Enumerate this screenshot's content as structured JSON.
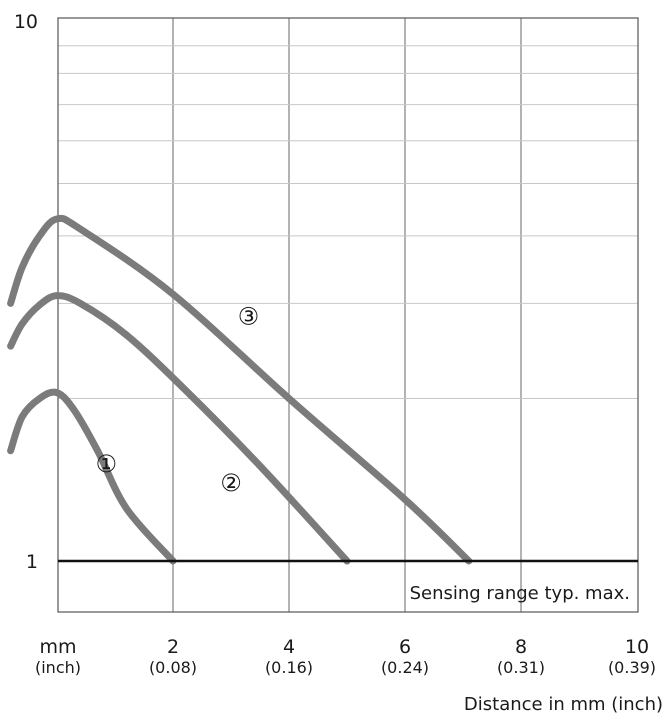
{
  "chart_data": {
    "type": "line",
    "title": "",
    "xlabel": "Distance in mm (inch)",
    "ylabel": "",
    "x_unit_label": "mm",
    "x_subunit_label": "(inch)",
    "xlim": [
      0,
      10
    ],
    "ylim": [
      1,
      10
    ],
    "yscale": "log",
    "grid": true,
    "x_ticks": [
      {
        "value": 2,
        "label": "2",
        "sublabel": "(0.08)"
      },
      {
        "value": 4,
        "label": "4",
        "sublabel": "(0.16)"
      },
      {
        "value": 6,
        "label": "6",
        "sublabel": "(0.24)"
      },
      {
        "value": 8,
        "label": "8",
        "sublabel": "(0.31)"
      },
      {
        "value": 10,
        "label": "10",
        "sublabel": "(0.39)"
      }
    ],
    "y_ticks": [
      {
        "value": 1,
        "label": "1"
      },
      {
        "value": 10,
        "label": "10"
      }
    ],
    "reference_line": {
      "y": 1,
      "label": "Sensing range typ. max."
    },
    "series": [
      {
        "name": "①",
        "label_pos": [
          0.85,
          1.52
        ],
        "points": [
          [
            -0.8,
            1.6
          ],
          [
            -0.6,
            1.85
          ],
          [
            -0.3,
            2.0
          ],
          [
            0,
            2.05
          ],
          [
            0.3,
            1.9
          ],
          [
            0.7,
            1.6
          ],
          [
            1.2,
            1.25
          ],
          [
            2.0,
            1.0
          ]
        ]
      },
      {
        "name": "②",
        "label_pos": [
          3.0,
          1.4
        ],
        "points": [
          [
            -0.8,
            2.5
          ],
          [
            -0.6,
            2.75
          ],
          [
            -0.3,
            2.98
          ],
          [
            0,
            3.1
          ],
          [
            0.4,
            3.0
          ],
          [
            1.2,
            2.62
          ],
          [
            2.2,
            2.08
          ],
          [
            3.5,
            1.5
          ],
          [
            5.0,
            1.0
          ]
        ]
      },
      {
        "name": "③",
        "label_pos": [
          3.3,
          2.85
        ],
        "points": [
          [
            -0.8,
            3.0
          ],
          [
            -0.6,
            3.5
          ],
          [
            -0.3,
            4.0
          ],
          [
            0,
            4.3
          ],
          [
            0.4,
            4.12
          ],
          [
            2.0,
            3.12
          ],
          [
            4.0,
            2.0
          ],
          [
            6.0,
            1.3
          ],
          [
            7.1,
            1.0
          ]
        ]
      }
    ]
  },
  "colors": {
    "curve": "#7b7b7b",
    "grid": "#c8c8c8",
    "grid_major": "#8a8a8a",
    "axis": "#111111"
  }
}
